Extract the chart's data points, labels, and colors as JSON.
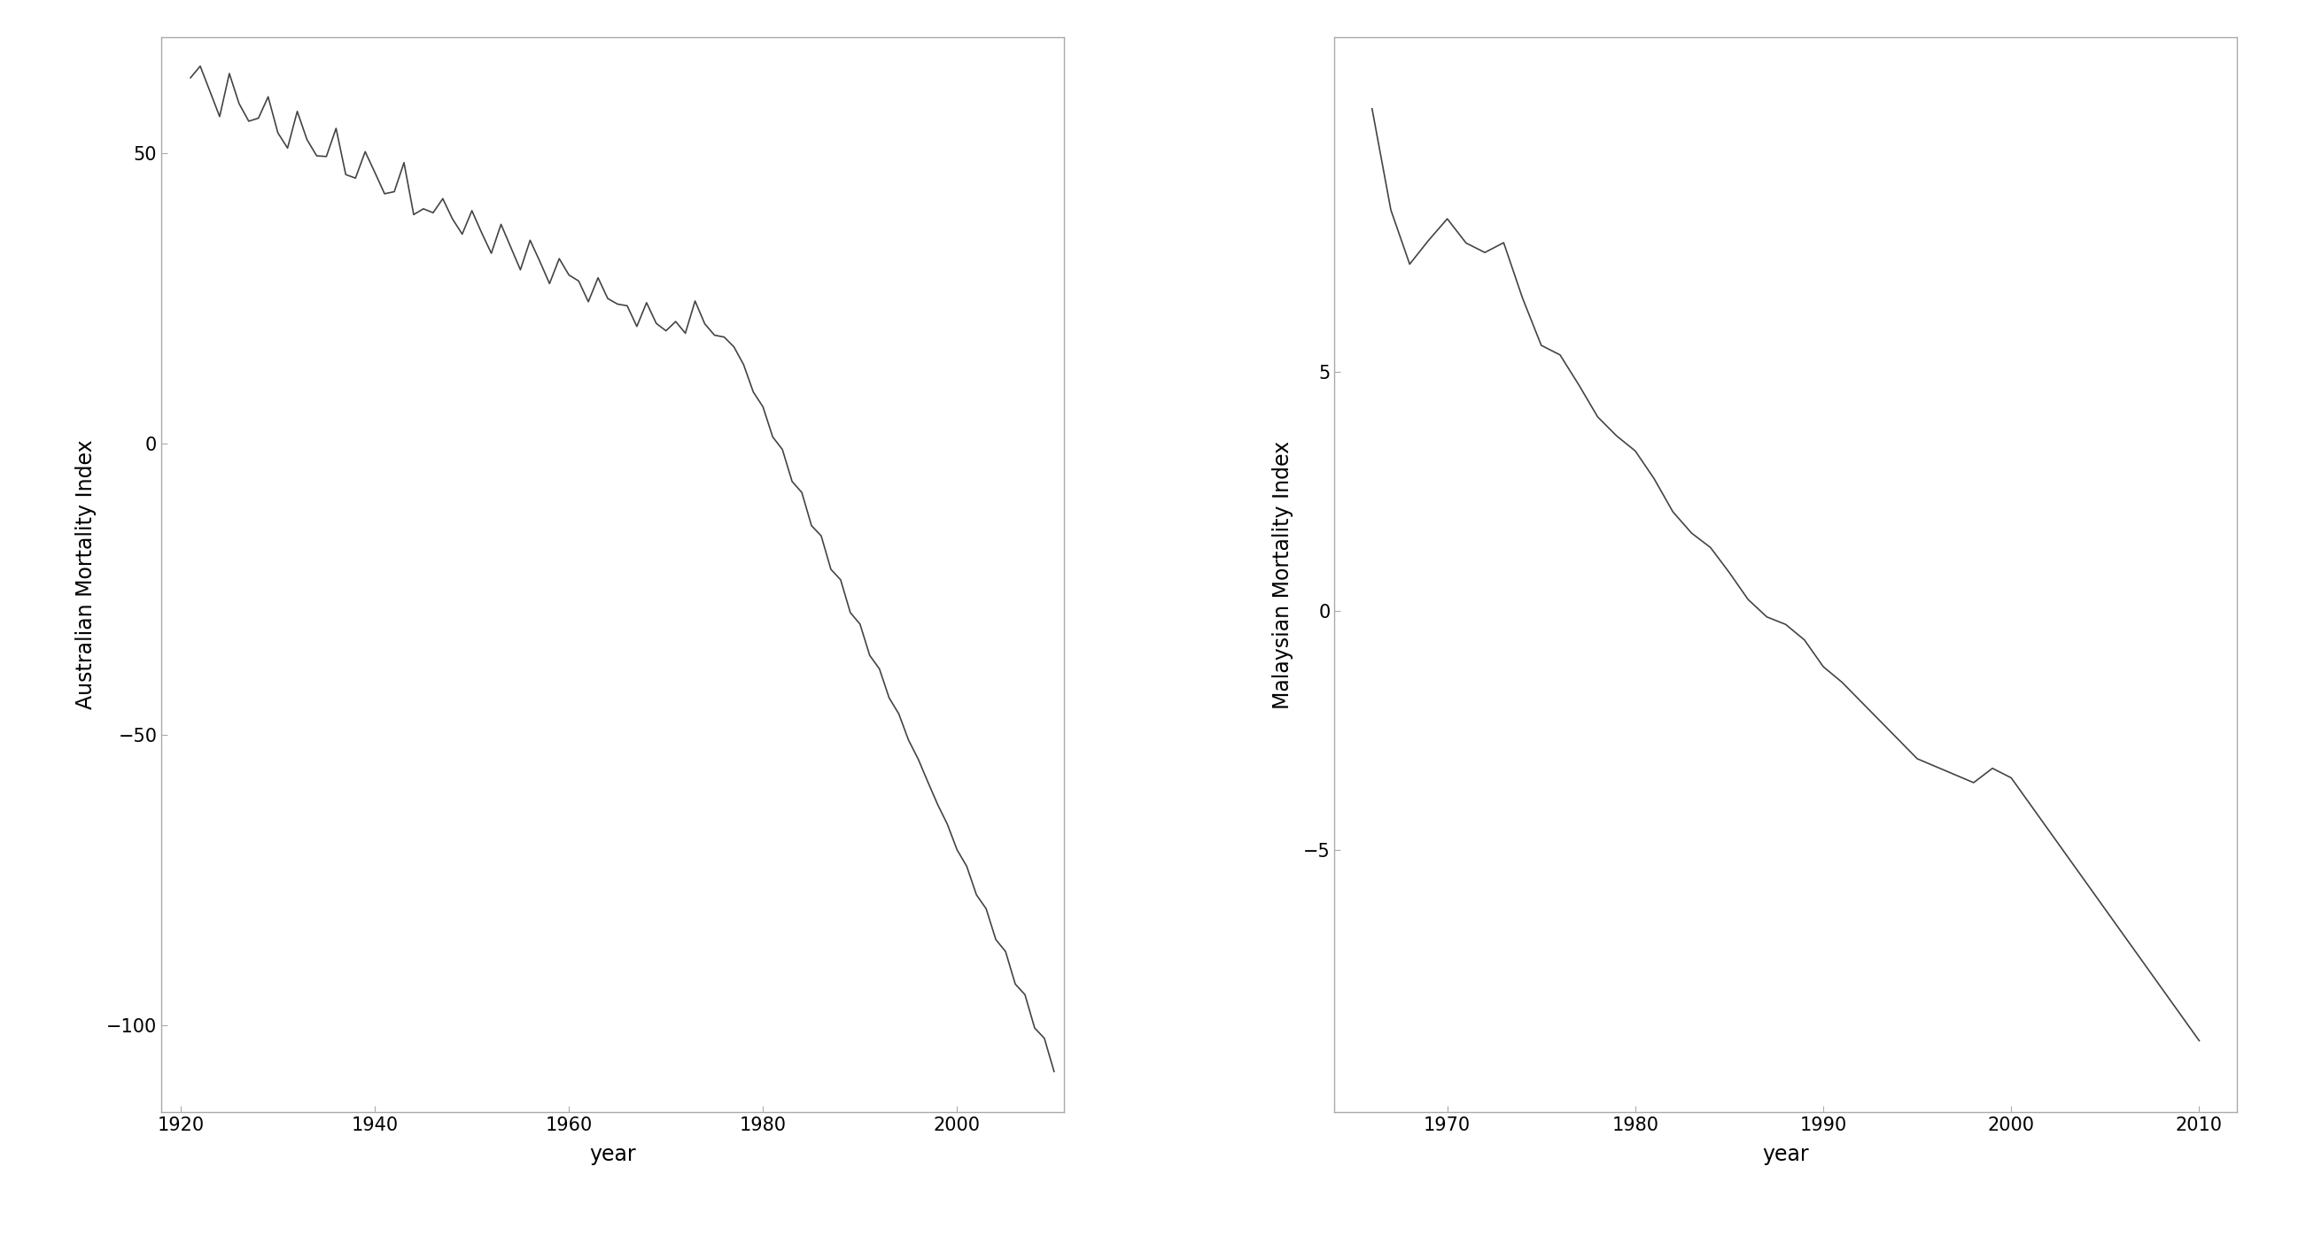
{
  "aus_xlabel": "year",
  "aus_ylabel": "Australian Mortality Index",
  "mys_xlabel": "year",
  "mys_ylabel": "Malaysian Mortality Index",
  "aus_xlim": [
    1918,
    2011
  ],
  "aus_ylim": [
    -115,
    70
  ],
  "aus_xticks": [
    1920,
    1940,
    1960,
    1980,
    2000
  ],
  "aus_yticks": [
    -100,
    -50,
    0,
    50
  ],
  "mys_xlim": [
    1964,
    2012
  ],
  "mys_ylim": [
    -10.5,
    12.0
  ],
  "mys_xticks": [
    1970,
    1980,
    1990,
    2000,
    2010
  ],
  "mys_yticks": [
    5,
    0,
    -5
  ],
  "line_color": "#444444",
  "line_width": 1.2,
  "background_color": "#ffffff",
  "spine_color": "#aaaaaa",
  "tick_color": "#aaaaaa",
  "label_fontsize": 17,
  "tick_fontsize": 15
}
